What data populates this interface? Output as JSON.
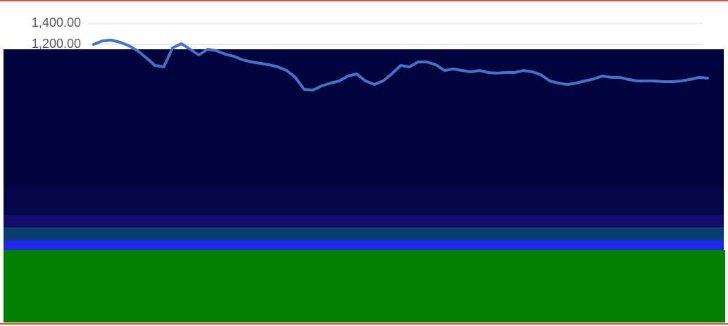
{
  "chart_data": {
    "type": "line",
    "values": [
      1200,
      1233,
      1240,
      1220,
      1187,
      1140,
      1073,
      1000,
      987,
      1167,
      1207,
      1153,
      1100,
      1153,
      1140,
      1107,
      1087,
      1053,
      1033,
      1020,
      1007,
      987,
      953,
      887,
      773,
      767,
      807,
      833,
      853,
      900,
      920,
      853,
      820,
      853,
      920,
      1000,
      987,
      1033,
      1033,
      1007,
      953,
      967,
      953,
      940,
      953,
      933,
      927,
      933,
      933,
      953,
      940,
      913,
      853,
      833,
      820,
      833,
      853,
      873,
      900,
      887,
      887,
      867,
      853,
      853,
      853,
      847,
      847,
      853,
      867,
      887,
      880
    ],
    "color": "#4472c4",
    "ylim": [
      0,
      1400
    ],
    "yticks": [
      {
        "value": 1400,
        "label": "1,400.00"
      },
      {
        "value": 1200,
        "label": "1,200.00"
      }
    ],
    "grid": true
  }
}
